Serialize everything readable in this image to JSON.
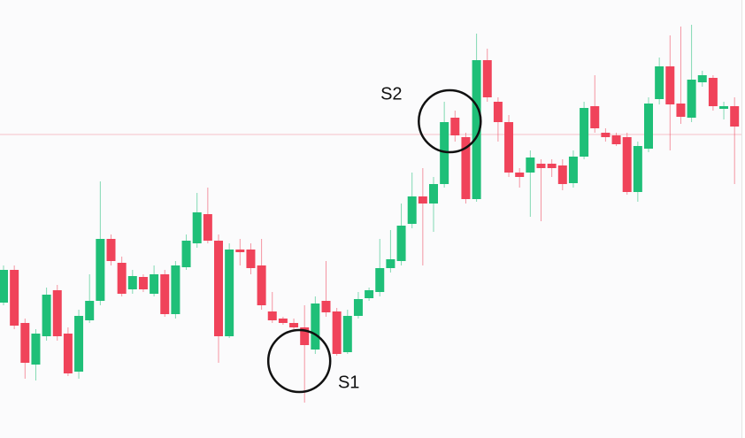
{
  "chart_data": {
    "type": "candlestick",
    "open": [
      158,
      195,
      135,
      88,
      120,
      172,
      123,
      80,
      138,
      160,
      230,
      203,
      173,
      187,
      168,
      190,
      145,
      198,
      225,
      258,
      228,
      120,
      218,
      218,
      200,
      148,
      140,
      135,
      130,
      105,
      160,
      148,
      102,
      143,
      163,
      170,
      197,
      205,
      247,
      278,
      270,
      292,
      367,
      345,
      275,
      432,
      385,
      362,
      305,
      305,
      315,
      315,
      313,
      293,
      323,
      380,
      350,
      347,
      345,
      283,
      332,
      388,
      425,
      383,
      367,
      407,
      412,
      377,
      380
    ],
    "high": [
      200,
      200,
      140,
      128,
      175,
      178,
      130,
      150,
      190,
      295,
      235,
      210,
      195,
      190,
      200,
      195,
      205,
      235,
      282,
      288,
      235,
      225,
      230,
      225,
      230,
      170,
      142,
      140,
      155,
      165,
      205,
      152,
      150,
      170,
      175,
      230,
      240,
      270,
      305,
      310,
      300,
      385,
      375,
      350,
      462,
      445,
      390,
      370,
      310,
      330,
      320,
      320,
      320,
      330,
      385,
      415,
      355,
      350,
      350,
      340,
      390,
      435,
      460,
      470,
      472,
      420,
      415,
      385,
      390
    ],
    "low": [
      155,
      128,
      72,
      70,
      115,
      115,
      75,
      72,
      135,
      155,
      200,
      165,
      168,
      170,
      165,
      142,
      140,
      195,
      220,
      225,
      90,
      118,
      200,
      190,
      150,
      135,
      133,
      128,
      45,
      100,
      142,
      98,
      100,
      140,
      160,
      165,
      192,
      200,
      242,
      200,
      238,
      288,
      340,
      270,
      272,
      385,
      340,
      300,
      288,
      255,
      250,
      300,
      285,
      288,
      320,
      350,
      340,
      335,
      280,
      272,
      328,
      382,
      330,
      360,
      362,
      402,
      375,
      365,
      292
    ],
    "close": [
      195,
      132,
      90,
      123,
      167,
      120,
      78,
      143,
      160,
      230,
      205,
      168,
      188,
      173,
      190,
      145,
      200,
      228,
      260,
      228,
      120,
      218,
      215,
      197,
      155,
      138,
      135,
      130,
      110,
      157,
      147,
      100,
      143,
      162,
      172,
      197,
      207,
      245,
      278,
      270,
      292,
      362,
      347,
      275,
      432,
      390,
      362,
      305,
      300,
      322,
      310,
      310,
      292,
      323,
      378,
      355,
      345,
      337,
      283,
      335,
      383,
      425,
      382,
      368,
      410,
      415,
      380,
      380,
      357
    ],
    "up_color": "#1fbf78",
    "down_color": "#f0435a",
    "ylim": [
      5,
      500
    ],
    "hline": {
      "value": 348,
      "color": "#f6c1c7"
    },
    "annotations": [
      {
        "text": "S1",
        "index": 28,
        "value": 92
      },
      {
        "text": "S2",
        "index": 42,
        "value": 363
      }
    ]
  }
}
